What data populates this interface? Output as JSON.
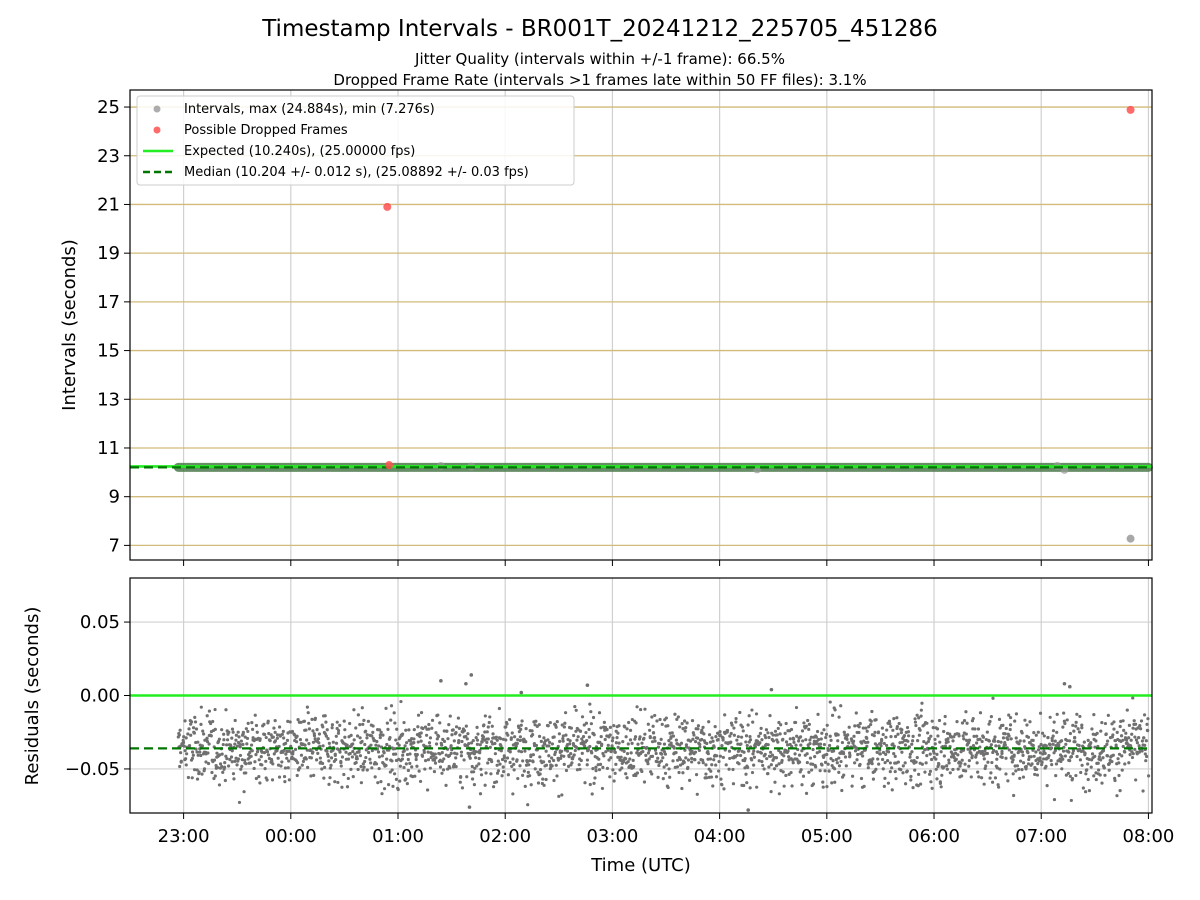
{
  "chart_data": {
    "type": "scatter",
    "title": "Timestamp Intervals - BR001T_20241212_225705_451286",
    "subtitle_lines": [
      "Jitter Quality (intervals within +/-1 frame): 66.5%",
      "Dropped Frame Rate (intervals >1 frames late within 50 FF files): 3.1%"
    ],
    "xlabel": "Time (UTC)",
    "x_ticks": [
      "23:00",
      "00:00",
      "01:00",
      "02:00",
      "03:00",
      "04:00",
      "05:00",
      "06:00",
      "07:00",
      "08:00"
    ],
    "x_range": [
      "22:30",
      "08:02"
    ],
    "panels": [
      {
        "name": "intervals",
        "ylabel": "Intervals (seconds)",
        "ylim": [
          6.4,
          25.7
        ],
        "y_ticks": [
          "7",
          "9",
          "11",
          "13",
          "15",
          "17",
          "19",
          "21",
          "23",
          "25"
        ],
        "grid": true,
        "legend_placement": "upper-left",
        "legend": [
          {
            "label": "Intervals, max (24.884s), min (7.276s)",
            "marker": "dot",
            "color": "#999999"
          },
          {
            "label": "Possible Dropped Frames",
            "marker": "dot",
            "color": "#ff5050"
          },
          {
            "label": "Expected (10.240s), (25.00000 fps)",
            "marker": "solid-line",
            "color": "#22ee22"
          },
          {
            "label": "Median (10.204 +/- 0.012 s), (25.08892 +/- 0.03 fps)",
            "marker": "dashed-line",
            "color": "#007700"
          }
        ],
        "series": [
          {
            "name": "Intervals, max (24.884s), min (7.276s)",
            "x": [
              "22:57",
              "08:00"
            ],
            "y": [
              10.204,
              10.204
            ],
            "color": "#999999",
            "note_band": true
          },
          {
            "name": "Intervals, max (24.884s), min (7.276s)",
            "x": [
              "07:50"
            ],
            "y": [
              7.276
            ],
            "color": "#999999"
          },
          {
            "name": "Possible Dropped Frames",
            "x": [
              "00:54",
              "00:55",
              "07:50"
            ],
            "y": [
              20.9,
              10.3,
              24.884
            ],
            "color": "#ff5050"
          }
        ],
        "reference_lines": [
          {
            "name": "Expected (10.240s), (25.00000 fps)",
            "y": 10.24,
            "style": "solid",
            "color": "#22ee22"
          },
          {
            "name": "Median (10.204 +/- 0.012 s), (25.08892 +/- 0.03 fps)",
            "y": 10.204,
            "style": "dashed",
            "color": "#007700"
          }
        ]
      },
      {
        "name": "residuals",
        "ylabel": "Residuals (seconds)",
        "ylim": [
          -0.08,
          0.08
        ],
        "y_ticks": [
          "0.05",
          "0.00",
          "−0.05"
        ],
        "grid": true,
        "residual_summary": {
          "center": -0.036,
          "spread": 0.012,
          "min": -0.078,
          "max": 0.014
        },
        "outliers": [
          {
            "x": "01:24",
            "y": 0.01
          },
          {
            "x": "01:38",
            "y": 0.008
          },
          {
            "x": "01:41",
            "y": 0.014
          },
          {
            "x": "02:09",
            "y": 0.002
          },
          {
            "x": "02:46",
            "y": 0.007
          },
          {
            "x": "04:29",
            "y": 0.004
          },
          {
            "x": "07:13",
            "y": 0.008
          },
          {
            "x": "07:16",
            "y": 0.006
          },
          {
            "x": "04:16",
            "y": -0.078
          },
          {
            "x": "01:40",
            "y": -0.076
          }
        ],
        "reference_lines": [
          {
            "y": 0.0,
            "style": "solid",
            "color": "#22ee22"
          },
          {
            "y": -0.036,
            "style": "dashed",
            "color": "#007700"
          }
        ]
      }
    ]
  }
}
